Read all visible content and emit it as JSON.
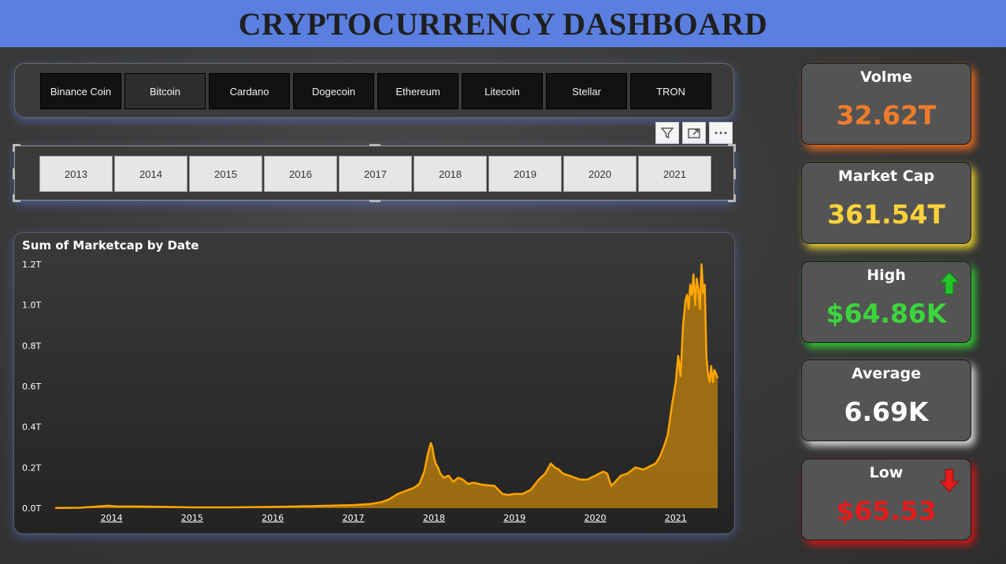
{
  "header": {
    "title": "CRYPTOCURRENCY DASHBOARD"
  },
  "coins": {
    "items": [
      "Binance Coin",
      "Bitcoin",
      "Cardano",
      "Dogecoin",
      "Ethereum",
      "Litecoin",
      "Stellar",
      "TRON"
    ],
    "selected": "Bitcoin"
  },
  "toolbar": {
    "icons": [
      "filter-icon",
      "focus-mode-icon",
      "more-options-icon"
    ]
  },
  "years": {
    "items": [
      "2013",
      "2014",
      "2015",
      "2016",
      "2017",
      "2018",
      "2019",
      "2020",
      "2021"
    ]
  },
  "chart_data": {
    "type": "area",
    "title": "Sum of Marketcap by Date",
    "xlabel": "",
    "ylabel": "",
    "y_ticks": [
      "0.0T",
      "0.2T",
      "0.4T",
      "0.6T",
      "0.8T",
      "1.0T",
      "1.2T"
    ],
    "x_ticks": [
      "2014",
      "2015",
      "2016",
      "2017",
      "2018",
      "2019",
      "2020",
      "2021"
    ],
    "ylim": [
      0,
      1.2
    ],
    "xlim": [
      2013.3,
      2021.52
    ],
    "grid": false,
    "legend": "none",
    "color": "#ffa500",
    "series": [
      {
        "x": [
          2013.3,
          2013.6,
          2013.9,
          2013.95,
          2014.05,
          2014.3,
          2014.6,
          2015.0,
          2015.5,
          2016.0,
          2016.5,
          2017.0,
          2017.2,
          2017.35,
          2017.45,
          2017.55,
          2017.65,
          2017.75,
          2017.82,
          2017.88,
          2017.92,
          2017.96,
          2017.98,
          2018.0,
          2018.02,
          2018.05,
          2018.08,
          2018.12,
          2018.18,
          2018.24,
          2018.3,
          2018.36,
          2018.42,
          2018.5,
          2018.6,
          2018.75,
          2018.85,
          2018.92,
          2019.0,
          2019.1,
          2019.2,
          2019.3,
          2019.38,
          2019.45,
          2019.5,
          2019.55,
          2019.6,
          2019.68,
          2019.75,
          2019.82,
          2019.9,
          2020.0,
          2020.05,
          2020.1,
          2020.15,
          2020.2,
          2020.25,
          2020.32,
          2020.4,
          2020.5,
          2020.6,
          2020.65,
          2020.7,
          2020.75,
          2020.8,
          2020.85,
          2020.9,
          2020.95,
          2021.0,
          2021.03,
          2021.06,
          2021.09,
          2021.12,
          2021.14,
          2021.16,
          2021.18,
          2021.2,
          2021.22,
          2021.24,
          2021.26,
          2021.28,
          2021.3,
          2021.32,
          2021.34,
          2021.36,
          2021.38,
          2021.4,
          2021.42,
          2021.44,
          2021.46,
          2021.48,
          2021.5,
          2021.52
        ],
        "y": [
          0.001,
          0.002,
          0.01,
          0.012,
          0.009,
          0.008,
          0.007,
          0.004,
          0.004,
          0.006,
          0.01,
          0.015,
          0.02,
          0.03,
          0.045,
          0.07,
          0.085,
          0.1,
          0.12,
          0.18,
          0.26,
          0.32,
          0.3,
          0.25,
          0.22,
          0.2,
          0.17,
          0.15,
          0.16,
          0.13,
          0.15,
          0.14,
          0.12,
          0.125,
          0.115,
          0.11,
          0.07,
          0.065,
          0.07,
          0.07,
          0.09,
          0.14,
          0.17,
          0.22,
          0.2,
          0.19,
          0.17,
          0.16,
          0.15,
          0.14,
          0.14,
          0.16,
          0.17,
          0.18,
          0.17,
          0.11,
          0.13,
          0.16,
          0.17,
          0.2,
          0.19,
          0.2,
          0.21,
          0.22,
          0.25,
          0.3,
          0.36,
          0.5,
          0.62,
          0.75,
          0.65,
          0.9,
          1.02,
          1.05,
          0.98,
          1.1,
          1.05,
          1.15,
          1.0,
          1.13,
          1.08,
          0.98,
          1.2,
          1.06,
          1.1,
          0.75,
          0.66,
          0.62,
          0.7,
          0.62,
          0.68,
          0.66,
          0.64
        ]
      }
    ]
  },
  "kpis": [
    {
      "label": "Volme",
      "value": "32.62T",
      "color": "#f07c2a",
      "glow": "#e2661a"
    },
    {
      "label": "Market Cap",
      "value": "361.54T",
      "color": "#ffd23a",
      "glow": "#e6cc2e"
    },
    {
      "label": "High",
      "value": "$64.86K",
      "color": "#3cd63c",
      "glow": "#2fc72f",
      "arrow": "up-arrow-icon"
    },
    {
      "label": "Average",
      "value": "6.69K",
      "color": "#ffffff",
      "glow": "#d8d8d8"
    },
    {
      "label": "Low",
      "value": "$65.53",
      "color": "#e31c1c",
      "glow": "#cc1717",
      "arrow": "down-arrow-icon"
    }
  ]
}
